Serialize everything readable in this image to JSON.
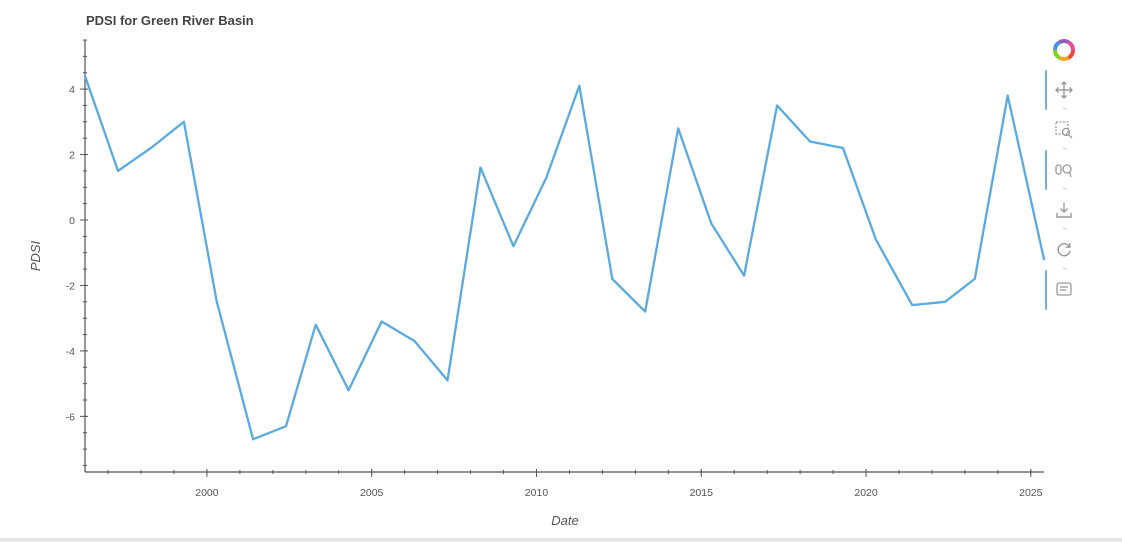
{
  "chart_data": {
    "type": "line",
    "title": "PDSI for Green River Basin",
    "xlabel": "Date",
    "ylabel": "PDSI",
    "xlim": [
      1996.3,
      2025.4
    ],
    "ylim": [
      -7.7,
      5.5
    ],
    "x_ticks": [
      2000,
      2005,
      2010,
      2015,
      2020,
      2025
    ],
    "y_ticks": [
      4,
      2,
      0,
      -2,
      -4,
      -6
    ],
    "grid": false,
    "legend": "none",
    "colors": {
      "series": "#5aaae0",
      "axis": "#555555"
    },
    "series": [
      {
        "x": [
          1996.3,
          1997.3,
          1998.3,
          1999.3,
          2000.3,
          2001.4,
          2002.4,
          2003.3,
          2004.3,
          2005.3,
          2006.3,
          2007.3,
          2008.3,
          2009.3,
          2010.3,
          2011.3,
          2012.3,
          2013.3,
          2014.3,
          2015.3,
          2016.3,
          2017.3,
          2018.3,
          2019.3,
          2020.3,
          2021.4,
          2022.4,
          2023.3,
          2024.3,
          2025.4
        ],
        "values": [
          4.4,
          1.5,
          2.2,
          3.0,
          -2.5,
          -6.7,
          -6.3,
          -3.2,
          -5.2,
          -3.1,
          -3.7,
          -4.9,
          1.6,
          -0.8,
          1.3,
          4.1,
          -1.8,
          -2.8,
          2.8,
          -0.1,
          -1.7,
          3.5,
          2.4,
          2.2,
          -0.6,
          -2.6,
          -2.5,
          -1.8,
          3.8,
          -1.2
        ]
      }
    ]
  },
  "toolbar": {
    "logo_icon": "bokeh-logo-icon",
    "tools": [
      {
        "name": "pan-icon",
        "active": true
      },
      {
        "name": "box-zoom-icon",
        "active": false
      },
      {
        "name": "wheel-zoom-icon",
        "active": true
      },
      {
        "name": "save-icon",
        "active": false
      },
      {
        "name": "reset-icon",
        "active": false
      },
      {
        "name": "hover-icon",
        "active": true
      }
    ]
  }
}
